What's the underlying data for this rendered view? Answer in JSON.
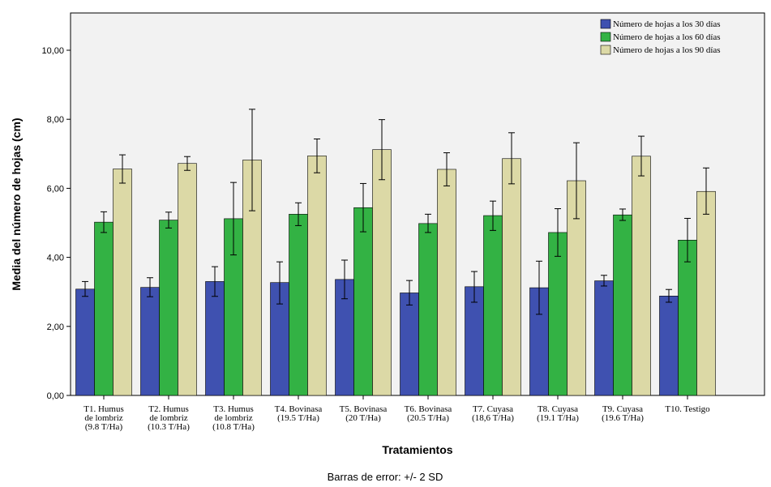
{
  "chart_data": {
    "type": "bar",
    "title": "",
    "xlabel": "Tratamientos",
    "ylabel": "Media del número de hojas (cm)",
    "note": "Barras de error: +/- 2 SD",
    "ylim": [
      0,
      11
    ],
    "yticks": [
      "0,00",
      "2,00",
      "4,00",
      "6,00",
      "8,00",
      "10,00"
    ],
    "ytick_values": [
      0,
      2,
      4,
      6,
      8,
      10
    ],
    "grid": false,
    "legend_position": "top-right",
    "categories": [
      [
        "T1. Humus",
        "de lombriz",
        "(9.8 T/Ha)"
      ],
      [
        "T2. Humus",
        "de lombriz",
        "(10.3 T/Ha)"
      ],
      [
        "T3. Humus",
        "de lombriz",
        "(10.8 T/Ha)"
      ],
      [
        "T4. Bovinasa",
        "(19.5 T/Ha)"
      ],
      [
        "T5. Bovinasa",
        "(20 T/Ha)"
      ],
      [
        "T6. Bovinasa",
        "(20.5 T/Ha)"
      ],
      [
        "T7. Cuyasa",
        "(18,6 T/Ha)"
      ],
      [
        "T8. Cuyasa",
        "(19.1 T/Ha)"
      ],
      [
        "T9. Cuyasa",
        "(19.6 T/Ha)"
      ],
      [
        "T10. Testigo"
      ]
    ],
    "series": [
      {
        "name": "Número de hojas a los 30 días",
        "color": "#3f51b0",
        "values": [
          3.08,
          3.13,
          3.3,
          3.27,
          3.36,
          2.97,
          3.15,
          3.12,
          3.32,
          2.88
        ],
        "err_low": [
          2.87,
          2.86,
          2.87,
          2.65,
          2.8,
          2.62,
          2.7,
          2.35,
          3.17,
          2.7
        ],
        "err_high": [
          3.3,
          3.41,
          3.73,
          3.87,
          3.92,
          3.33,
          3.59,
          3.89,
          3.48,
          3.07
        ]
      },
      {
        "name": "Número de hojas a los 60 días",
        "color": "#33b244",
        "values": [
          5.02,
          5.08,
          5.12,
          5.25,
          5.44,
          4.98,
          5.21,
          4.72,
          5.23,
          4.5
        ],
        "err_low": [
          4.72,
          4.85,
          4.07,
          4.92,
          4.74,
          4.72,
          4.78,
          4.03,
          5.07,
          3.87
        ],
        "err_high": [
          5.32,
          5.31,
          6.17,
          5.58,
          6.14,
          5.25,
          5.63,
          5.41,
          5.4,
          5.13
        ]
      },
      {
        "name": "Número de hojas a los 90 días",
        "color": "#dcd9a6",
        "values": [
          6.56,
          6.72,
          6.82,
          6.94,
          7.12,
          6.55,
          6.86,
          6.22,
          6.93,
          5.91
        ],
        "err_low": [
          6.15,
          6.52,
          5.35,
          6.45,
          6.25,
          6.07,
          6.13,
          5.12,
          6.36,
          5.25
        ],
        "err_high": [
          6.97,
          6.92,
          8.29,
          7.43,
          7.99,
          7.03,
          7.61,
          7.32,
          7.51,
          6.59
        ]
      }
    ]
  }
}
